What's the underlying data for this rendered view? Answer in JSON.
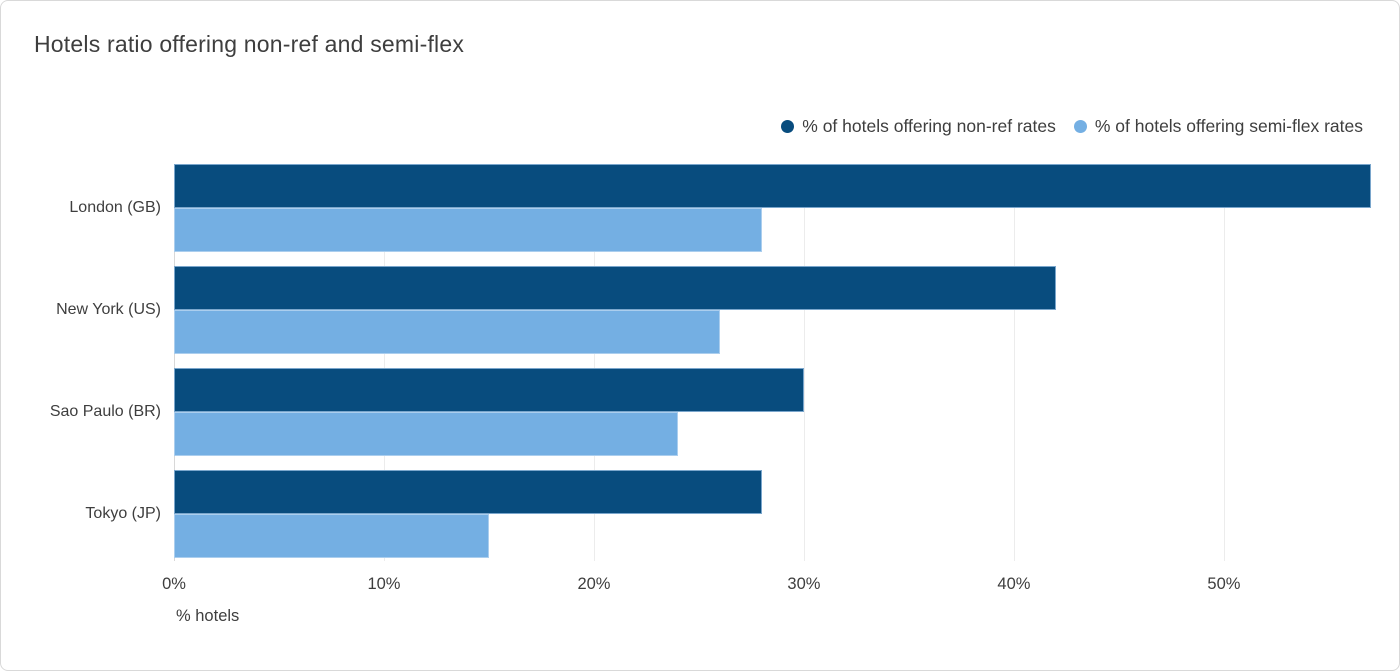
{
  "title": "Hotels ratio offering non-ref and semi-flex",
  "colors": {
    "non_ref": "#084c7e",
    "semi_flex": "#74afe3",
    "text": "#3e3e3e",
    "gridline": "#ececec",
    "card_border": "#d9d9d9"
  },
  "chart_data": {
    "type": "bar",
    "orientation": "horizontal",
    "title": "Hotels ratio offering non-ref and semi-flex",
    "categories": [
      "London (GB)",
      "New York (US)",
      "Sao Paulo (BR)",
      "Tokyo (JP)"
    ],
    "series": [
      {
        "name": "% of hotels offering non-ref rates",
        "color": "#084c7e",
        "values": [
          57,
          42,
          30,
          28
        ]
      },
      {
        "name": "% of hotels offering semi-flex rates",
        "color": "#74afe3",
        "values": [
          28,
          26,
          24,
          15
        ]
      }
    ],
    "xlabel": "% hotels",
    "ylabel": "",
    "x_ticks": [
      "0%",
      "10%",
      "20%",
      "30%",
      "40%",
      "50%"
    ],
    "x_tick_values": [
      0,
      10,
      20,
      30,
      40,
      50
    ],
    "xlim": [
      0,
      57.1
    ],
    "grid": true,
    "legend_position": "top-right"
  }
}
